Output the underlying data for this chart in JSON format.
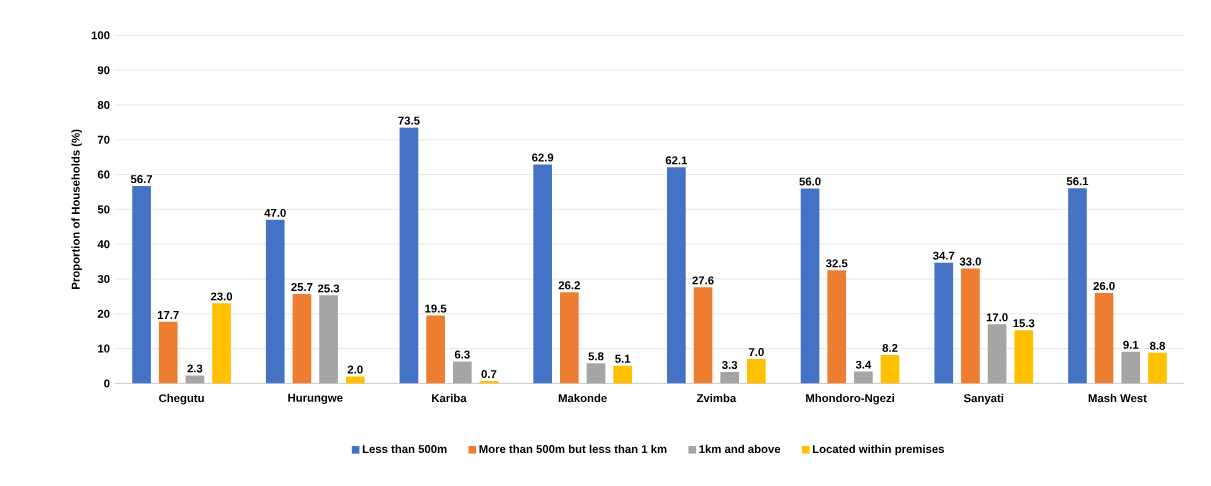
{
  "chart_data": {
    "type": "bar",
    "ylabel": "Proportion of Households (%)",
    "categories": [
      "Chegutu",
      "Hurungwe",
      "Kariba",
      "Makonde",
      "Zvimba",
      "Mhondoro-Ngezi",
      "Sanyati",
      "Mash West"
    ],
    "series": [
      {
        "name": "Less than 500m",
        "color": "#4472c4",
        "values": [
          56.7,
          47.0,
          73.5,
          62.9,
          62.1,
          56.0,
          34.7,
          56.1
        ],
        "value_labels": [
          "56.7",
          "47.0",
          "73.5",
          "62.9",
          "62.1",
          "56.0",
          "34.7",
          "56.1"
        ]
      },
      {
        "name": "More than 500m but less than 1 km",
        "color": "#ed7d31",
        "values": [
          17.7,
          25.7,
          19.5,
          26.2,
          27.6,
          32.5,
          33.0,
          26.0
        ],
        "value_labels": [
          "17.7",
          "25.7",
          "19.5",
          "26.2",
          "27.6",
          "32.5",
          "33.0",
          "26.0"
        ]
      },
      {
        "name": "1km and above",
        "color": "#a5a5a5",
        "values": [
          2.3,
          25.3,
          6.3,
          5.8,
          3.3,
          3.4,
          17.0,
          9.1
        ],
        "value_labels": [
          "2.3",
          "25.3",
          "6.3",
          "5.8",
          "3.3",
          "3.4",
          "17.0",
          "9.1"
        ]
      },
      {
        "name": "Located within premises",
        "color": "#ffc000",
        "values": [
          23.0,
          2.0,
          0.7,
          5.1,
          7.0,
          8.2,
          15.3,
          8.8
        ],
        "value_labels": [
          "23.0",
          "2.0",
          "0.7",
          "5.1",
          "7.0",
          "8.2",
          "15.3",
          "8.8"
        ]
      }
    ],
    "ylim": [
      0,
      100
    ],
    "yticks": [
      0,
      10,
      20,
      30,
      40,
      50,
      60,
      70,
      80,
      90,
      100
    ],
    "grid": "y",
    "legend": "bottom"
  }
}
